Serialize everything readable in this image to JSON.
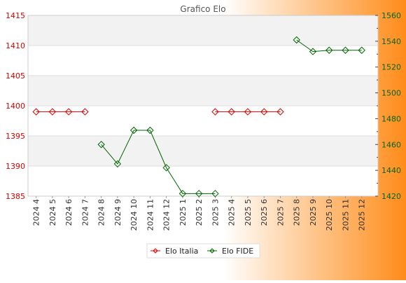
{
  "chart_data": {
    "type": "line",
    "title": "Grafico Elo",
    "categories": [
      "2024 4",
      "2024 5",
      "2024 6",
      "2024 7",
      "2024 8",
      "2024 9",
      "2024 10",
      "2024 11",
      "2024 12",
      "2025 1",
      "2025 2",
      "2025 3",
      "2025 4",
      "2025 5",
      "2025 6",
      "2025 7",
      "2025 8",
      "2025 9",
      "2025 10",
      "2025 11",
      "2025 12"
    ],
    "ylim_left": [
      1385,
      1415
    ],
    "yticks_left": [
      1385,
      1390,
      1395,
      1400,
      1405,
      1410,
      1415
    ],
    "ylim_right": [
      1420,
      1560
    ],
    "yticks_right": [
      1420,
      1440,
      1460,
      1480,
      1500,
      1520,
      1540,
      1560
    ],
    "grid": true,
    "legend_position": "bottom-center",
    "series": [
      {
        "name": "Elo Italia",
        "axis": "left",
        "color": "#dd0000",
        "segments": [
          [
            [
              0,
              1399
            ],
            [
              1,
              1399
            ],
            [
              2,
              1399
            ],
            [
              3,
              1399
            ]
          ],
          [
            [
              11,
              1399
            ],
            [
              12,
              1399
            ],
            [
              13,
              1399
            ],
            [
              14,
              1399
            ],
            [
              15,
              1399
            ]
          ]
        ]
      },
      {
        "name": "Elo FIDE",
        "axis": "right",
        "color": "#006600",
        "segments": [
          [
            [
              4,
              1460
            ],
            [
              5,
              1445
            ],
            [
              6,
              1471
            ],
            [
              7,
              1471
            ],
            [
              8,
              1442
            ],
            [
              9,
              1422
            ],
            [
              10,
              1422
            ],
            [
              11,
              1422
            ]
          ],
          [
            [
              16,
              1541
            ],
            [
              17,
              1532
            ],
            [
              18,
              1533
            ],
            [
              19,
              1533
            ],
            [
              20,
              1533
            ]
          ]
        ]
      }
    ]
  }
}
